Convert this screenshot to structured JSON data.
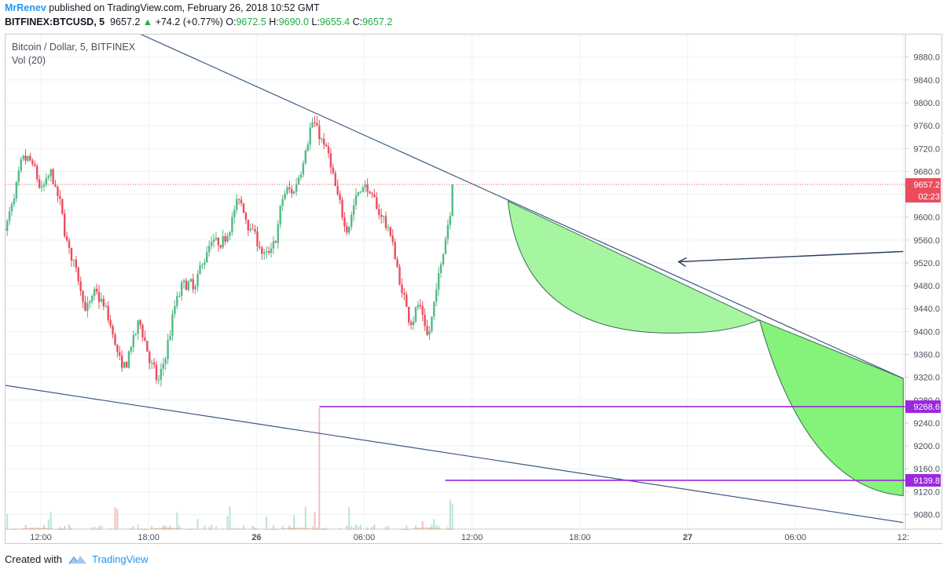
{
  "header": {
    "author": "MrRenev",
    "published_text": "published on TradingView.com, February 26, 2018 10:52 GMT",
    "symbol": "BITFINEX:BTCUSD, 5",
    "last": "9657.2",
    "change": "+74.2 (+0.77%)",
    "o_label": "O:",
    "o_value": "9672.5",
    "h_label": "H:",
    "h_value": "9690.0",
    "l_label": "L:",
    "l_value": "9655.4",
    "c_label": "C:",
    "c_value": "9657.2"
  },
  "legend": {
    "title": "Bitcoin / Dollar, 5, BITFINEX",
    "volume": "Vol (20)"
  },
  "footer": {
    "created_with": "Created with",
    "brand": "TradingView"
  },
  "colors": {
    "up": "#53b987",
    "down": "#eb4d5c",
    "trendline": "#3d5a80",
    "level": "#9c27e0",
    "projection": "#7cf07c"
  },
  "chart_data": {
    "type": "candlestick",
    "y_ticks": [
      "9880.0",
      "9840.0",
      "9800.0",
      "9760.0",
      "9720.0",
      "9680.0",
      "9640.0",
      "9600.0",
      "9560.0",
      "9520.0",
      "9480.0",
      "9440.0",
      "9400.0",
      "9360.0",
      "9320.0",
      "9280.0",
      "9240.0",
      "9200.0",
      "9160.0",
      "9120.0",
      "9080.0"
    ],
    "ylim": [
      9050,
      9905
    ],
    "x_ticks": [
      "12:00",
      "18:00",
      "26",
      "06:00",
      "12:00",
      "18:00",
      "27",
      "06:00",
      "12:"
    ],
    "last_price": {
      "value": 9657.2,
      "label": "9657.2",
      "countdown": "02:23"
    },
    "levels": [
      {
        "value": 9268.6,
        "label": "9268.6",
        "x_from": "26 03:30"
      },
      {
        "value": 9139.8,
        "label": "9139.8",
        "x_from": "26 10:30"
      }
    ],
    "trendlines": [
      {
        "name": "upper",
        "from": [
          "25 16:00",
          9942
        ],
        "to": [
          "27 12:00",
          9318
        ]
      },
      {
        "name": "lower",
        "from": [
          "25 10:00",
          9306
        ],
        "to": [
          "27 12:00",
          9066
        ]
      }
    ],
    "projections": [
      {
        "name": "curve-1",
        "from": [
          "26 14:00",
          9628
        ],
        "bottom": [
          "27 00:00",
          9398
        ],
        "to": [
          "27 04:00",
          9420
        ]
      },
      {
        "name": "curve-2",
        "from": [
          "27 04:00",
          9420
        ],
        "bottom": [
          "27 12:00",
          9113
        ]
      }
    ],
    "arrow": {
      "from": [
        "27 12:00",
        9540
      ],
      "to": [
        "26 23:30",
        9522
      ]
    },
    "price_path": [
      [
        "25 10:00",
        9580
      ],
      [
        "25 10:30",
        9640
      ],
      [
        "25 11:00",
        9705
      ],
      [
        "25 11:30",
        9690
      ],
      [
        "25 12:00",
        9640
      ],
      [
        "25 12:30",
        9680
      ],
      [
        "25 13:00",
        9620
      ],
      [
        "25 13:30",
        9540
      ],
      [
        "25 14:00",
        9500
      ],
      [
        "25 14:30",
        9430
      ],
      [
        "25 15:00",
        9470
      ],
      [
        "25 15:30",
        9440
      ],
      [
        "25 16:00",
        9390
      ],
      [
        "25 16:30",
        9320
      ],
      [
        "25 17:00",
        9380
      ],
      [
        "25 17:30",
        9420
      ],
      [
        "25 18:00",
        9350
      ],
      [
        "25 18:30",
        9300
      ],
      [
        "25 19:00",
        9380
      ],
      [
        "25 19:30",
        9460
      ],
      [
        "25 20:00",
        9490
      ],
      [
        "25 20:30",
        9470
      ],
      [
        "25 21:00",
        9530
      ],
      [
        "25 21:30",
        9560
      ],
      [
        "25 22:00",
        9540
      ],
      [
        "25 22:30",
        9600
      ],
      [
        "25 23:00",
        9630
      ],
      [
        "25 23:30",
        9590
      ],
      [
        "26 00:00",
        9560
      ],
      [
        "26 00:30",
        9520
      ],
      [
        "26 01:00",
        9560
      ],
      [
        "26 01:30",
        9650
      ],
      [
        "26 02:00",
        9640
      ],
      [
        "26 02:30",
        9700
      ],
      [
        "26 03:00",
        9770
      ],
      [
        "26 03:30",
        9740
      ],
      [
        "26 04:00",
        9700
      ],
      [
        "26 04:30",
        9620
      ],
      [
        "26 05:00",
        9580
      ],
      [
        "26 05:30",
        9640
      ],
      [
        "26 06:00",
        9660
      ],
      [
        "26 06:30",
        9620
      ],
      [
        "26 07:00",
        9600
      ],
      [
        "26 07:30",
        9560
      ],
      [
        "26 08:00",
        9470
      ],
      [
        "26 08:30",
        9420
      ],
      [
        "26 09:00",
        9450
      ],
      [
        "26 09:30",
        9380
      ],
      [
        "26 10:00",
        9480
      ],
      [
        "26 10:30",
        9580
      ],
      [
        "26 11:00",
        9660
      ]
    ],
    "volume_series_name": "Vol (20)"
  }
}
